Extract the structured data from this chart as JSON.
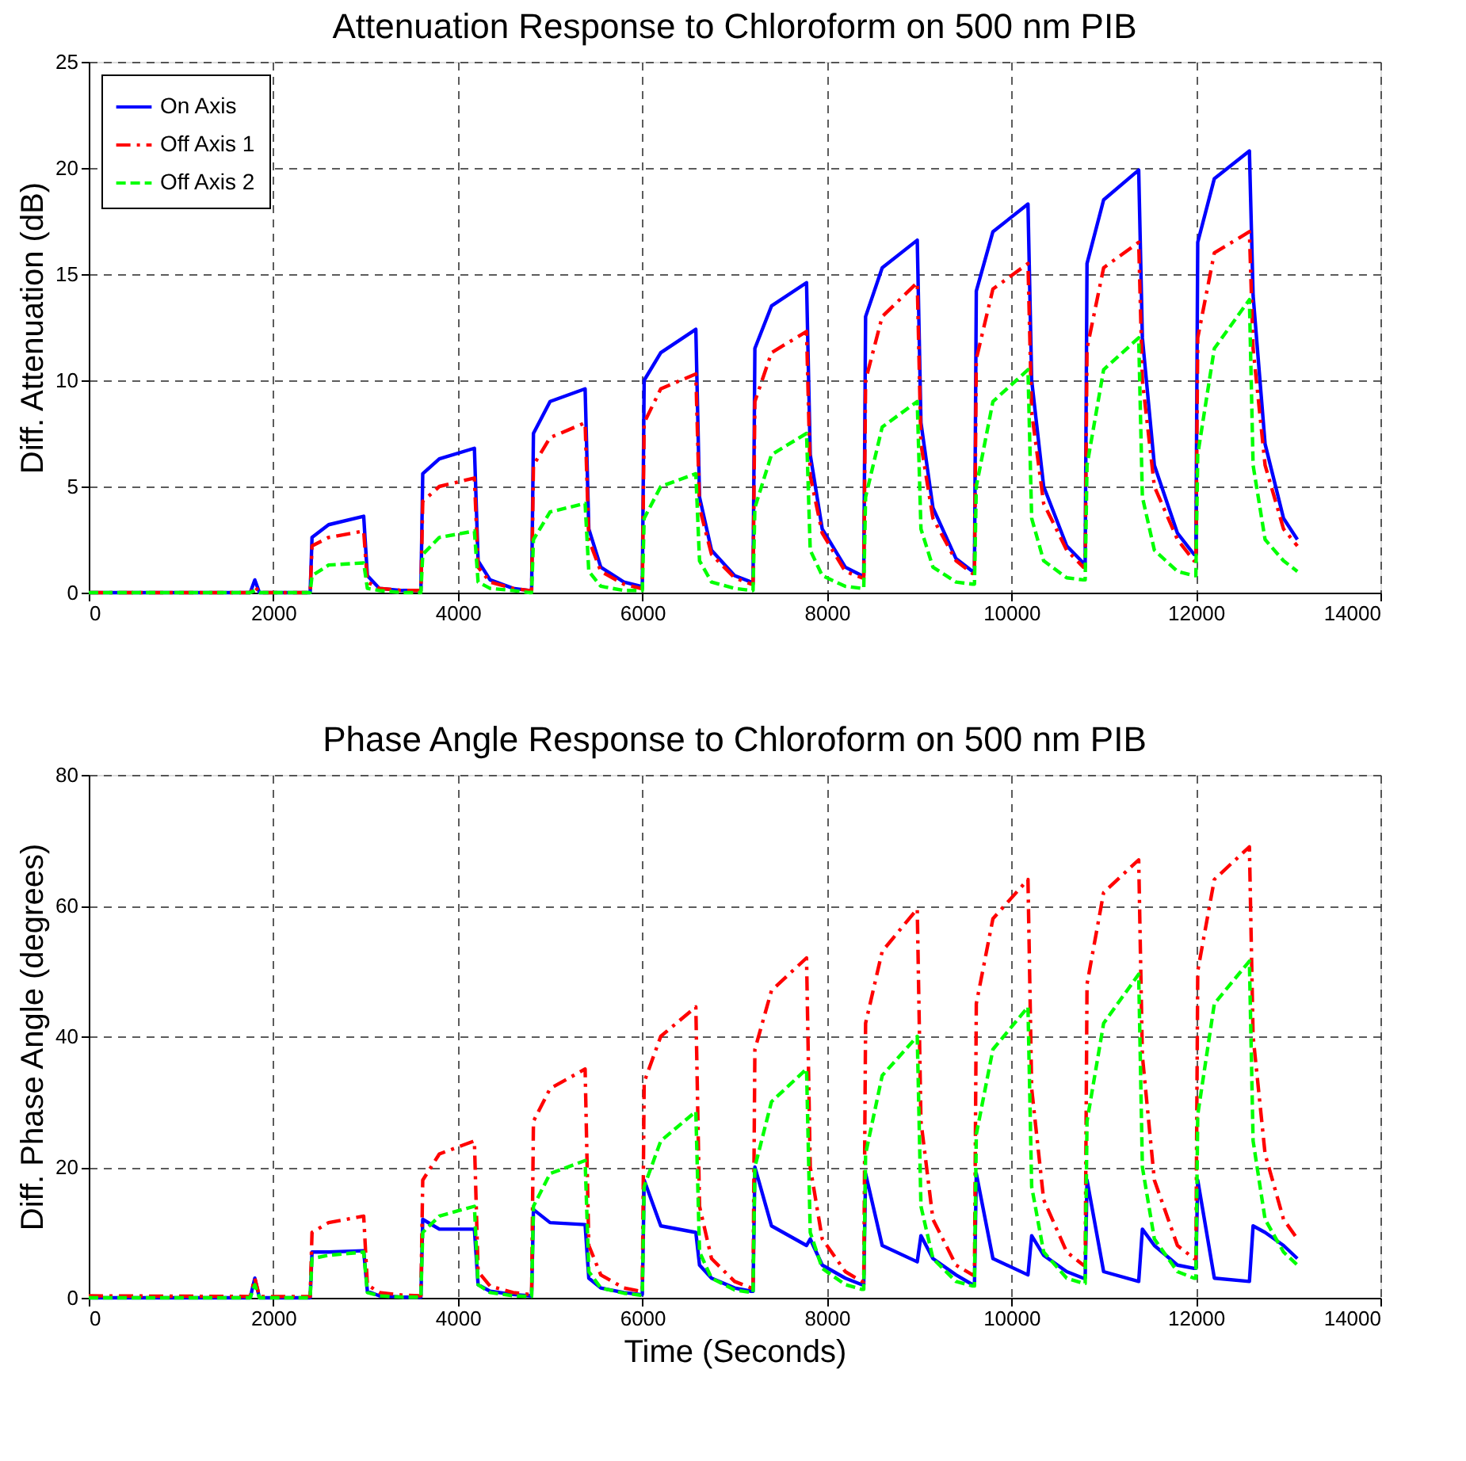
{
  "chart_data": [
    {
      "type": "line",
      "title": "Attenuation Response to Chloroform on 500 nm PIB",
      "ylabel": "Diff. Attenuation (dB)",
      "xlim": [
        0,
        14000
      ],
      "xticks": [
        0,
        2000,
        4000,
        6000,
        8000,
        10000,
        12000,
        14000
      ],
      "ylim": [
        0,
        25
      ],
      "yticks": [
        0,
        5,
        10,
        15,
        20,
        25
      ],
      "grid": true,
      "legend": "top left",
      "x": [
        0,
        1750,
        1800,
        1850,
        2400,
        2420,
        2600,
        2980,
        3020,
        3150,
        3400,
        3580,
        3600,
        3620,
        3800,
        4180,
        4220,
        4350,
        4600,
        4780,
        4800,
        4820,
        5000,
        5380,
        5420,
        5550,
        5800,
        5980,
        6000,
        6020,
        6200,
        6580,
        6620,
        6750,
        7000,
        7180,
        7200,
        7220,
        7400,
        7780,
        7820,
        7950,
        8200,
        8380,
        8400,
        8420,
        8600,
        8980,
        9020,
        9150,
        9400,
        9580,
        9600,
        9620,
        9800,
        10180,
        10220,
        10350,
        10600,
        10780,
        10800,
        10820,
        11000,
        11380,
        11420,
        11550,
        11800,
        11980,
        12000,
        12020,
        12200,
        12580,
        12620,
        12750,
        12950,
        13100
      ],
      "series": [
        {
          "name": "On Axis",
          "color": "#0000ff",
          "line_style": "solid",
          "values": [
            0,
            0,
            0.6,
            0,
            0,
            2.6,
            3.2,
            3.6,
            0.8,
            0.2,
            0.1,
            0.1,
            0.1,
            5.6,
            6.3,
            6.8,
            1.5,
            0.6,
            0.2,
            0.1,
            0.1,
            7.5,
            9.0,
            9.6,
            3.0,
            1.2,
            0.5,
            0.3,
            0.3,
            10,
            11.3,
            12.4,
            4.5,
            2.0,
            0.8,
            0.5,
            0.5,
            11.5,
            13.5,
            14.6,
            6.5,
            3.0,
            1.2,
            0.8,
            0.8,
            13,
            15.3,
            16.6,
            8,
            4,
            1.6,
            1.0,
            1.0,
            14.2,
            17,
            18.3,
            10,
            5,
            2.2,
            1.4,
            1.4,
            15.5,
            18.5,
            19.9,
            12,
            6,
            2.8,
            1.8,
            1.8,
            16.5,
            19.5,
            20.8,
            14,
            7,
            3.5,
            2.5
          ]
        },
        {
          "name": "Off Axis 1",
          "color": "#ff0000",
          "line_style": "dashdot",
          "values": [
            0,
            0,
            0.3,
            0,
            0,
            2.2,
            2.6,
            2.9,
            0.5,
            0.2,
            0.1,
            0.1,
            0.1,
            4.3,
            5.0,
            5.4,
            1.2,
            0.5,
            0.2,
            0.1,
            0.1,
            6.0,
            7.3,
            8.0,
            2.5,
            1.0,
            0.4,
            0.2,
            0.2,
            8.0,
            9.6,
            10.3,
            4,
            1.8,
            0.7,
            0.4,
            0.4,
            9,
            11.3,
            12.3,
            5.5,
            2.8,
            1.0,
            0.7,
            0.7,
            10,
            13,
            14.6,
            7,
            3.5,
            1.5,
            0.9,
            0.9,
            11,
            14.3,
            15.5,
            8.5,
            4.2,
            2.0,
            1.2,
            1.2,
            11.5,
            15.3,
            16.5,
            10,
            5,
            2.5,
            1.5,
            1.5,
            12,
            16,
            17,
            11.5,
            6,
            3,
            2.2
          ]
        },
        {
          "name": "Off Axis 2",
          "color": "#00ff00",
          "line_style": "dashed",
          "values": [
            0,
            0,
            0.1,
            0,
            0,
            0.8,
            1.3,
            1.4,
            0.2,
            0.1,
            0,
            0,
            0,
            1.8,
            2.6,
            2.9,
            0.5,
            0.2,
            0.1,
            0,
            0,
            2.5,
            3.8,
            4.2,
            1,
            0.3,
            0.1,
            0.1,
            0.1,
            3.5,
            5,
            5.6,
            1.5,
            0.5,
            0.2,
            0.1,
            0.1,
            4,
            6.5,
            7.5,
            2,
            0.8,
            0.3,
            0.2,
            0.2,
            4.5,
            7.8,
            9,
            3,
            1.2,
            0.5,
            0.4,
            0.4,
            5,
            9,
            10.5,
            3.5,
            1.5,
            0.7,
            0.6,
            0.6,
            6,
            10.5,
            12,
            4.5,
            2,
            1,
            0.8,
            0.8,
            6.5,
            11.5,
            13.8,
            6,
            2.5,
            1.5,
            1.0
          ]
        }
      ]
    },
    {
      "type": "line",
      "title": "Phase Angle Response to Chloroform on 500 nm PIB",
      "xlabel": "Time (Seconds)",
      "ylabel": "Diff. Phase Angle (degrees)",
      "xlim": [
        0,
        14000
      ],
      "xticks": [
        0,
        2000,
        4000,
        6000,
        8000,
        10000,
        12000,
        14000
      ],
      "ylim": [
        0,
        80
      ],
      "yticks": [
        0,
        20,
        40,
        60,
        80
      ],
      "grid": true,
      "legend": "top left",
      "x": [
        0,
        1750,
        1800,
        1850,
        2400,
        2420,
        2600,
        2980,
        3020,
        3150,
        3400,
        3580,
        3600,
        3620,
        3800,
        4180,
        4220,
        4350,
        4600,
        4780,
        4800,
        4820,
        5000,
        5380,
        5420,
        5550,
        5800,
        5980,
        6000,
        6020,
        6200,
        6580,
        6620,
        6750,
        7000,
        7180,
        7200,
        7220,
        7400,
        7780,
        7820,
        7950,
        8200,
        8380,
        8400,
        8420,
        8600,
        8980,
        9020,
        9150,
        9400,
        9580,
        9600,
        9620,
        9800,
        10180,
        10220,
        10350,
        10600,
        10780,
        10800,
        10820,
        11000,
        11380,
        11420,
        11550,
        11800,
        11980,
        12000,
        12020,
        12200,
        12580,
        12620,
        12750,
        12950,
        13100
      ],
      "series": [
        {
          "name": "On Axis",
          "color": "#0000ff",
          "line_style": "solid",
          "values": [
            0,
            0,
            3,
            0,
            0,
            7,
            7,
            7.2,
            1,
            0.3,
            0.1,
            0.1,
            0.1,
            12,
            10.5,
            10.5,
            2,
            1,
            0.5,
            0.3,
            0.3,
            13.5,
            11.5,
            11.2,
            3,
            1.5,
            0.8,
            0.5,
            0.5,
            18,
            11,
            10,
            5,
            3,
            1.5,
            1.0,
            1.0,
            20,
            11,
            8,
            9,
            5,
            3,
            2,
            2,
            19,
            8,
            5.5,
            9.5,
            6,
            3.5,
            2,
            2,
            19,
            6,
            3.5,
            9.5,
            6.5,
            4,
            3,
            3,
            18,
            4,
            2.5,
            10.5,
            8,
            5,
            4.5,
            4.5,
            18,
            3,
            2.5,
            11,
            10,
            8,
            6
          ]
        },
        {
          "name": "Off Axis 1",
          "color": "#ff0000",
          "line_style": "dashdot",
          "values": [
            0.3,
            0.2,
            3,
            0.2,
            0.2,
            10,
            11.5,
            12.5,
            2,
            0.8,
            0.4,
            0.3,
            0.3,
            18,
            22,
            24,
            4,
            1.8,
            0.8,
            0.5,
            0.5,
            27,
            32,
            35,
            8,
            3.5,
            1.5,
            1,
            1,
            33,
            40,
            44.5,
            14,
            6,
            2.5,
            1.5,
            1.5,
            38,
            47,
            52,
            20,
            9,
            4,
            2.5,
            2.5,
            42,
            53,
            59.5,
            27,
            12,
            5,
            3.5,
            3.5,
            45,
            58,
            64,
            32,
            15,
            7,
            5,
            5,
            48,
            62,
            67,
            37,
            18,
            8,
            6,
            6,
            50,
            64,
            69,
            40,
            22,
            12,
            9
          ]
        },
        {
          "name": "Off Axis 2",
          "color": "#00ff00",
          "line_style": "dashed",
          "values": [
            0,
            0,
            2,
            0,
            0,
            6,
            6.5,
            7,
            0.8,
            0.3,
            0.1,
            0.1,
            0.1,
            10,
            12.5,
            14,
            2,
            0.8,
            0.3,
            0.2,
            0.2,
            14,
            19,
            21,
            4,
            1.5,
            0.7,
            0.4,
            0.4,
            17,
            24,
            28.5,
            7,
            3,
            1.2,
            0.8,
            0.8,
            20,
            30,
            35,
            10,
            4.5,
            2,
            1.3,
            1.3,
            22,
            34,
            40,
            14,
            6,
            2.5,
            1.8,
            1.8,
            25,
            38,
            44.5,
            17,
            7,
            3,
            2.2,
            2.2,
            27,
            42,
            49.5,
            20,
            9,
            4,
            3,
            3,
            28,
            45,
            51.5,
            24,
            12,
            7,
            5
          ]
        }
      ]
    }
  ]
}
